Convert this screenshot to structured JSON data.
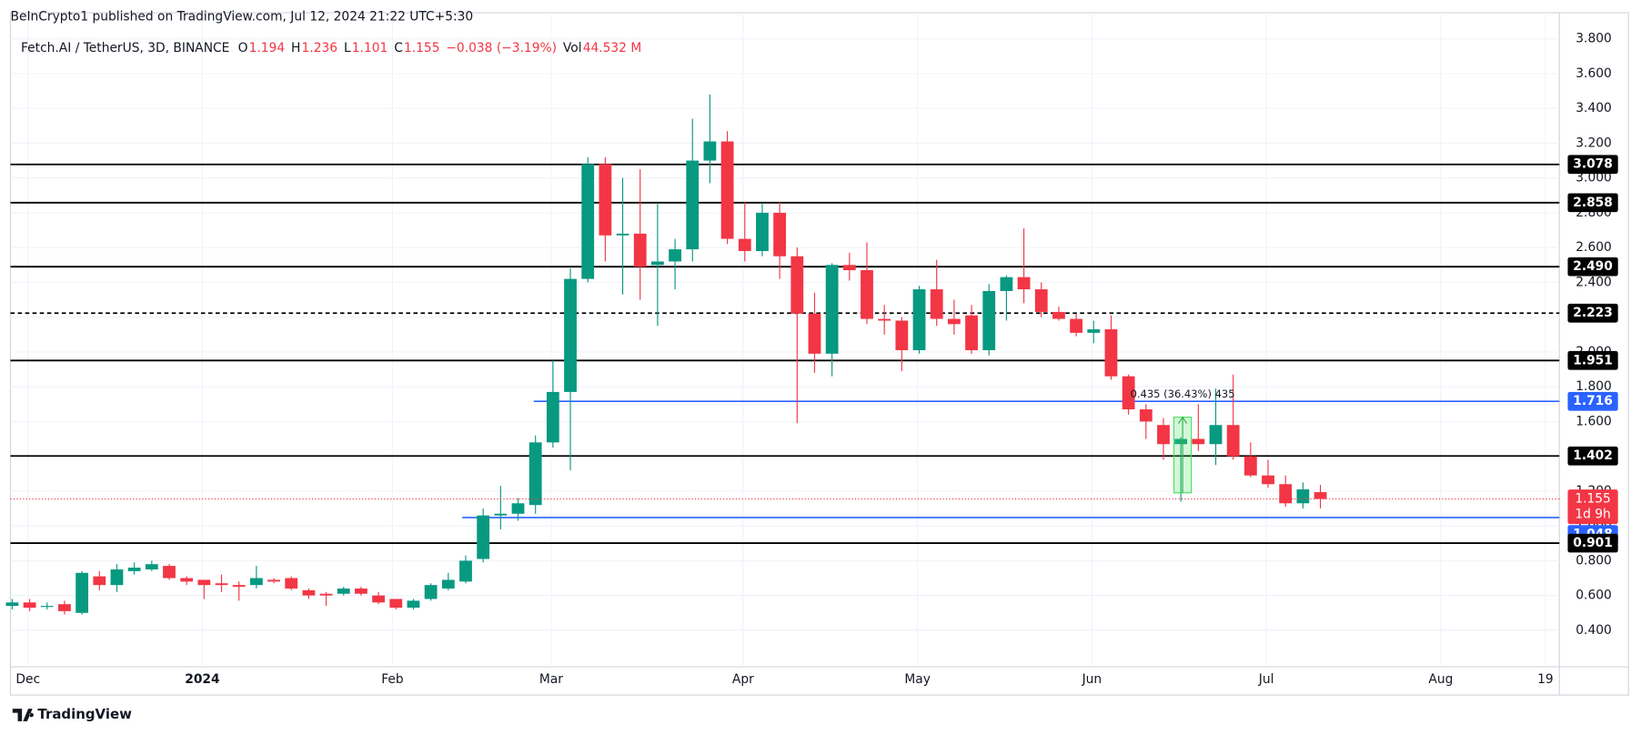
{
  "header": {
    "published": "BeInCrypto1 published on TradingView.com, Jul 12, 2024 21:22 UTC+5:30"
  },
  "footer": {
    "brand": "TradingView"
  },
  "chart_data": {
    "type": "candlestick",
    "legend": {
      "symbol": "Fetch.AI / TetherUS, 3D, BINANCE",
      "items": [
        {
          "key": "O",
          "value": 1.194
        },
        {
          "key": "H",
          "value": 1.236
        },
        {
          "key": "L",
          "value": 1.101
        },
        {
          "key": "C",
          "value": 1.155
        }
      ],
      "change": "−0.038 (−3.19%)",
      "volume_key": "Vol",
      "volume": "44.532 M"
    },
    "up_color": "#089981",
    "down_color": "#f23645",
    "open": [
      0.54,
      0.56,
      0.54,
      0.55,
      0.5,
      0.71,
      0.66,
      0.74,
      0.75,
      0.77,
      0.7,
      0.69,
      0.67,
      0.66,
      0.66,
      0.69,
      0.7,
      0.63,
      0.61,
      0.61,
      0.64,
      0.6,
      0.58,
      0.53,
      0.58,
      0.64,
      0.68,
      0.81,
      1.06,
      1.07,
      1.12,
      1.48,
      1.77,
      2.42,
      3.08,
      2.67,
      2.68,
      2.5,
      2.52,
      2.59,
      3.1,
      3.21,
      2.65,
      2.58,
      2.8,
      2.55,
      2.22,
      1.99,
      2.5,
      2.47,
      2.19,
      2.18,
      2.01,
      2.36,
      2.19,
      2.21,
      2.01,
      2.35,
      2.43,
      2.36,
      2.23,
      2.19,
      2.11,
      2.13,
      1.86,
      1.67,
      1.58,
      1.47,
      1.5,
      1.47,
      1.58,
      1.4,
      1.29,
      1.24,
      1.13,
      1.194
    ],
    "high": [
      0.58,
      0.58,
      0.56,
      0.57,
      0.74,
      0.74,
      0.78,
      0.79,
      0.8,
      0.78,
      0.71,
      0.69,
      0.72,
      0.68,
      0.77,
      0.7,
      0.71,
      0.64,
      0.62,
      0.65,
      0.65,
      0.62,
      0.58,
      0.58,
      0.67,
      0.73,
      0.83,
      1.1,
      1.23,
      1.16,
      1.52,
      1.95,
      2.48,
      3.12,
      3.12,
      3.0,
      3.05,
      2.85,
      2.65,
      3.34,
      3.48,
      3.27,
      2.86,
      2.85,
      2.86,
      2.6,
      2.34,
      2.51,
      2.57,
      2.63,
      2.27,
      2.2,
      2.38,
      2.53,
      2.3,
      2.27,
      2.39,
      2.44,
      2.71,
      2.4,
      2.26,
      2.22,
      2.18,
      2.21,
      1.87,
      1.7,
      1.62,
      1.51,
      1.7,
      1.79,
      1.87,
      1.48,
      1.38,
      1.29,
      1.25,
      1.236
    ],
    "low": [
      0.52,
      0.51,
      0.52,
      0.49,
      0.49,
      0.63,
      0.62,
      0.72,
      0.74,
      0.69,
      0.66,
      0.58,
      0.62,
      0.57,
      0.64,
      0.67,
      0.63,
      0.58,
      0.54,
      0.6,
      0.6,
      0.55,
      0.52,
      0.52,
      0.57,
      0.63,
      0.67,
      0.79,
      0.98,
      1.03,
      1.07,
      1.45,
      1.32,
      2.4,
      2.52,
      2.33,
      2.3,
      2.15,
      2.36,
      2.52,
      2.97,
      2.62,
      2.52,
      2.55,
      2.42,
      1.59,
      1.88,
      1.86,
      2.41,
      2.16,
      2.1,
      1.89,
      1.99,
      2.15,
      2.1,
      1.99,
      1.98,
      2.18,
      2.28,
      2.2,
      2.18,
      2.09,
      2.05,
      1.84,
      1.64,
      1.5,
      1.38,
      1.14,
      1.43,
      1.35,
      1.38,
      1.28,
      1.22,
      1.11,
      1.1,
      1.101
    ],
    "close": [
      0.56,
      0.53,
      0.54,
      0.51,
      0.73,
      0.66,
      0.75,
      0.76,
      0.78,
      0.7,
      0.68,
      0.66,
      0.66,
      0.65,
      0.7,
      0.68,
      0.64,
      0.6,
      0.6,
      0.64,
      0.61,
      0.56,
      0.53,
      0.57,
      0.66,
      0.69,
      0.8,
      1.06,
      1.07,
      1.13,
      1.48,
      1.77,
      2.42,
      3.08,
      2.67,
      2.68,
      2.49,
      2.52,
      2.59,
      3.1,
      3.21,
      2.65,
      2.58,
      2.8,
      2.55,
      2.22,
      1.99,
      2.5,
      2.47,
      2.19,
      2.18,
      2.01,
      2.36,
      2.19,
      2.16,
      2.01,
      2.35,
      2.43,
      2.36,
      2.23,
      2.19,
      2.11,
      2.13,
      1.86,
      1.67,
      1.6,
      1.47,
      1.5,
      1.47,
      1.58,
      1.4,
      1.29,
      1.24,
      1.13,
      1.21,
      1.155
    ],
    "countdown": "1d 9h",
    "xlim": [
      -0.1,
      88.7
    ],
    "xticks": [
      {
        "value": 0.9,
        "label": "Dec"
      },
      {
        "value": 10.9,
        "label": "2024"
      },
      {
        "value": 21.8,
        "label": "Feb"
      },
      {
        "value": 30.9,
        "label": "Mar"
      },
      {
        "value": 41.9,
        "label": "Apr"
      },
      {
        "value": 51.9,
        "label": "May"
      },
      {
        "value": 61.9,
        "label": "Jun"
      },
      {
        "value": 71.9,
        "label": "Jul"
      },
      {
        "value": 81.9,
        "label": "Aug"
      },
      {
        "value": 87.9,
        "label": "19"
      }
    ],
    "ylim": [
      0.19,
      3.95
    ],
    "yticks": [
      {
        "value": 0.4,
        "label": "0.400"
      },
      {
        "value": 0.6,
        "label": "0.600"
      },
      {
        "value": 0.8,
        "label": "0.800"
      },
      {
        "value": 1.0,
        "label": "1.000"
      },
      {
        "value": 1.2,
        "label": "1.200"
      },
      {
        "value": 1.4,
        "label": "1.400"
      },
      {
        "value": 1.6,
        "label": "1.600"
      },
      {
        "value": 1.8,
        "label": "1.800"
      },
      {
        "value": 2.0,
        "label": "2.000"
      },
      {
        "value": 2.2,
        "label": "2.200"
      },
      {
        "value": 2.4,
        "label": "2.400"
      },
      {
        "value": 2.6,
        "label": "2.600"
      },
      {
        "value": 2.8,
        "label": "2.800"
      },
      {
        "value": 3.0,
        "label": "3.000"
      },
      {
        "value": 3.2,
        "label": "3.200"
      },
      {
        "value": 3.4,
        "label": "3.400"
      },
      {
        "value": 3.6,
        "label": "3.600"
      },
      {
        "value": 3.8,
        "label": "3.800"
      }
    ],
    "grid": true,
    "levels": [
      {
        "value": 3.078,
        "color": "#000000",
        "style": "solid"
      },
      {
        "value": 2.858,
        "color": "#000000",
        "style": "solid"
      },
      {
        "value": 2.49,
        "label": "2.490",
        "color": "#000000",
        "style": "solid"
      },
      {
        "value": 2.223,
        "color": "#000000",
        "style": "dashed"
      },
      {
        "value": 1.951,
        "color": "#000000",
        "style": "solid"
      },
      {
        "value": 1.716,
        "color": "#2962ff",
        "style": "solid",
        "from": 29.9
      },
      {
        "value": 1.402,
        "color": "#000000",
        "style": "solid"
      },
      {
        "value": 1.048,
        "color": "#2962ff",
        "style": "solid",
        "from": 25.8
      },
      {
        "value": 0.901,
        "color": "#000000",
        "style": "solid"
      }
    ],
    "measure": {
      "text": "0.435 (36.43%) 435",
      "low": 1.19,
      "high": 1.625
    }
  }
}
